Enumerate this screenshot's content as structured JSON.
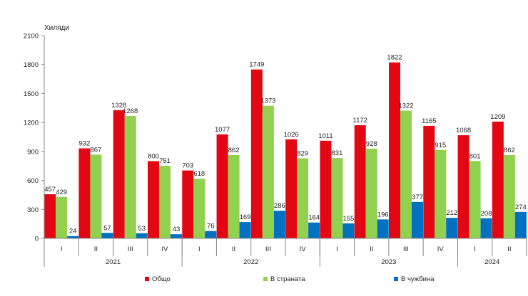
{
  "chart_data": {
    "type": "bar",
    "ylabel": "Хиляди",
    "ylim": [
      0,
      2100
    ],
    "yticks": [
      0,
      300,
      600,
      900,
      1200,
      1500,
      1800,
      2100
    ],
    "grid": false,
    "legend_position": "bottom",
    "years": [
      {
        "label": "2021",
        "quarters": 4
      },
      {
        "label": "2022",
        "quarters": 4
      },
      {
        "label": "2023",
        "quarters": 4
      },
      {
        "label": "2024",
        "quarters": 2
      }
    ],
    "categories": [
      "I",
      "II",
      "III",
      "IV",
      "I",
      "II",
      "III",
      "IV",
      "I",
      "II",
      "III",
      "IV",
      "I",
      "II"
    ],
    "series": [
      {
        "name": "Общо",
        "color": "#e30613",
        "values": [
          457,
          932,
          1328,
          800,
          703,
          1077,
          1749,
          1026,
          1011,
          1172,
          1822,
          1165,
          1068,
          1209
        ]
      },
      {
        "name": "В страната",
        "color": "#92d050",
        "values": [
          429,
          867,
          1268,
          751,
          618,
          862,
          1373,
          829,
          831,
          928,
          1322,
          915,
          801,
          862
        ]
      },
      {
        "name": "В чужбина",
        "color": "#0070c0",
        "values": [
          24,
          57,
          53,
          43,
          76,
          169,
          286,
          164,
          155,
          196,
          377,
          212,
          208,
          274
        ]
      }
    ]
  }
}
